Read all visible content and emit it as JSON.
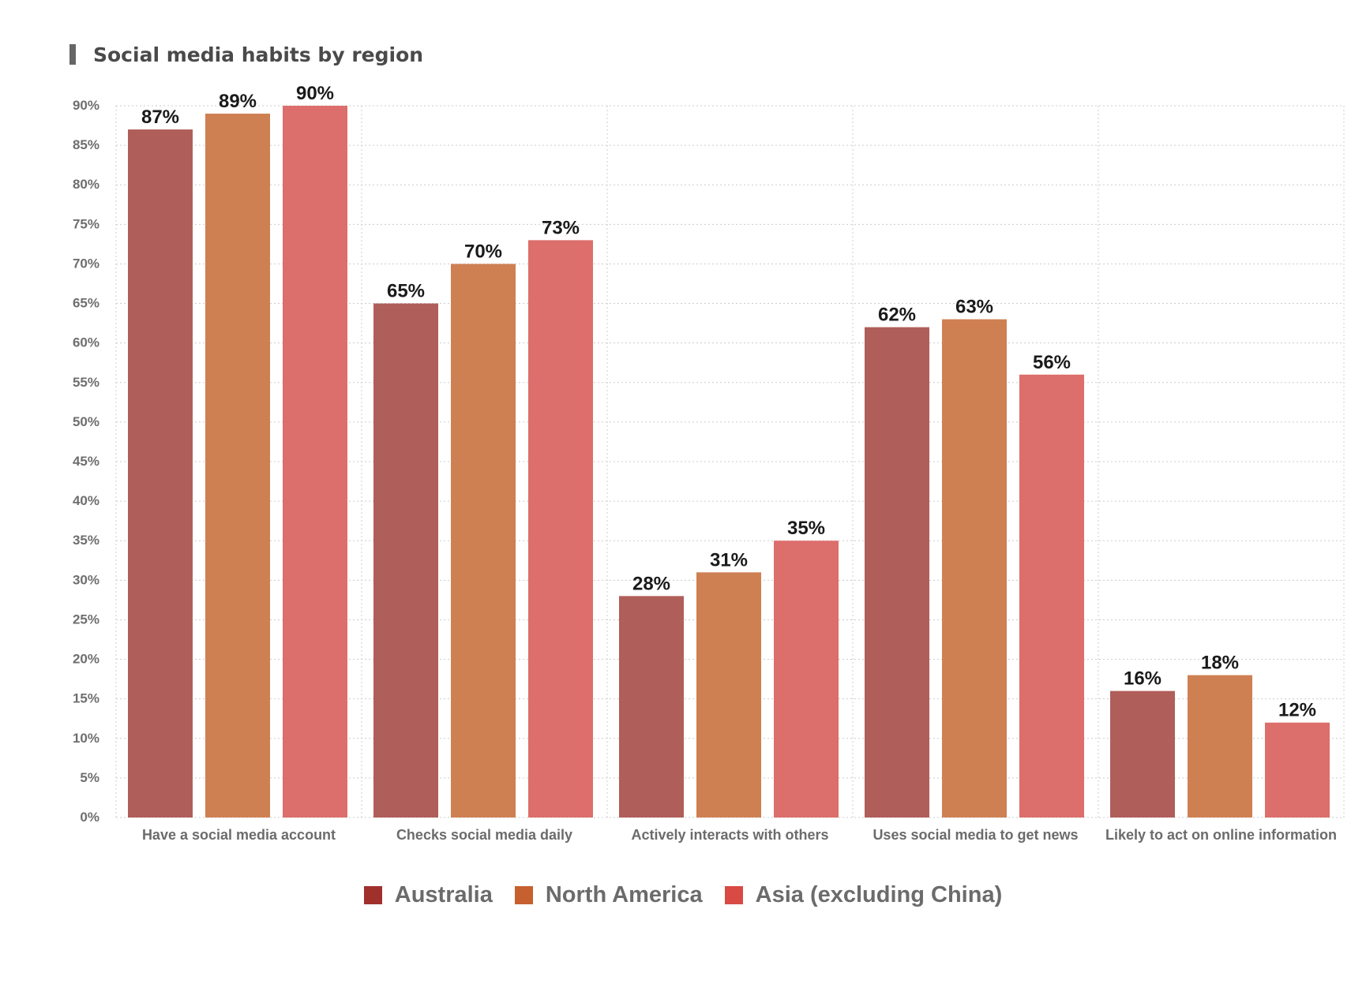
{
  "chart_data": {
    "type": "bar",
    "title": "Social media habits by region",
    "xlabel": "",
    "ylabel": "",
    "ylim": [
      0,
      90
    ],
    "yticks": [
      0,
      5,
      10,
      15,
      20,
      25,
      30,
      35,
      40,
      45,
      50,
      55,
      60,
      65,
      70,
      75,
      80,
      85,
      90
    ],
    "ytick_labels": [
      "0%",
      "5%",
      "10%",
      "15%",
      "20%",
      "25%",
      "30%",
      "35%",
      "40%",
      "45%",
      "50%",
      "55%",
      "60%",
      "65%",
      "70%",
      "75%",
      "80%",
      "85%",
      "90%"
    ],
    "grid": true,
    "legend_position": "bottom-center",
    "categories": [
      "Have a social media account",
      "Checks social media daily",
      "Actively interacts with others",
      "Uses social media to get news",
      "Likely to act on online information"
    ],
    "series": [
      {
        "name": "Australia",
        "color": "#b05e5a",
        "legend_color": "#a0302c",
        "values": [
          87,
          65,
          28,
          62,
          16
        ],
        "labels": [
          "87%",
          "65%",
          "28%",
          "62%",
          "16%"
        ]
      },
      {
        "name": "North America",
        "color": "#cf8053",
        "legend_color": "#c6602f",
        "values": [
          89,
          70,
          31,
          63,
          18
        ],
        "labels": [
          "89%",
          "70%",
          "31%",
          "63%",
          "18%"
        ]
      },
      {
        "name": "Asia (excluding China)",
        "color": "#dc6e6b",
        "legend_color": "#d94a45",
        "values": [
          90,
          73,
          35,
          56,
          12
        ],
        "labels": [
          "90%",
          "73%",
          "35%",
          "56%",
          "12%"
        ]
      }
    ]
  }
}
